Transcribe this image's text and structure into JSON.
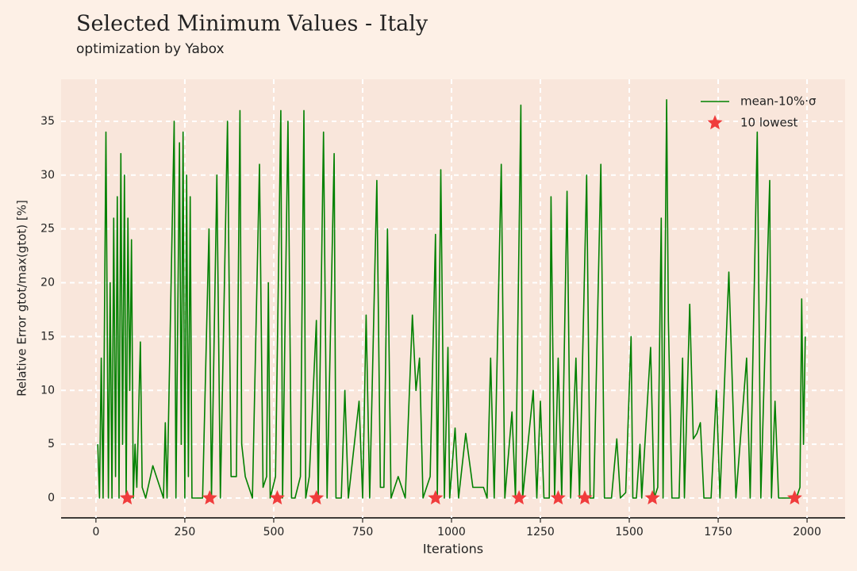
{
  "chart_data": {
    "type": "line",
    "title": "Selected Minimum Values - Italy",
    "subtitle": "optimization by Yabox",
    "xlabel": "Iterations",
    "ylabel": "Relative Error gtot/max(gtot) [%]",
    "xlim": [
      -98,
      2107
    ],
    "ylim": [
      -1.84,
      38.9
    ],
    "xticks": [
      0,
      250,
      500,
      750,
      1000,
      1250,
      1500,
      1750,
      2000
    ],
    "yticks": [
      0,
      5,
      10,
      15,
      20,
      25,
      30,
      35
    ],
    "grid": true,
    "legend": "upper right",
    "series": [
      {
        "name": "mean-10%·σ",
        "color": "#008000",
        "kind": "line",
        "x": [
          5,
          10,
          15,
          20,
          28,
          35,
          40,
          45,
          50,
          55,
          60,
          65,
          70,
          75,
          80,
          85,
          90,
          95,
          100,
          105,
          110,
          115,
          125,
          130,
          140,
          160,
          190,
          195,
          200,
          220,
          225,
          235,
          240,
          245,
          250,
          255,
          260,
          265,
          270,
          280,
          300,
          318,
          325,
          340,
          350,
          370,
          380,
          395,
          405,
          410,
          420,
          440,
          460,
          470,
          480,
          485,
          490,
          505,
          520,
          525,
          540,
          550,
          560,
          575,
          585,
          590,
          600,
          620,
          625,
          640,
          650,
          670,
          675,
          690,
          700,
          710,
          740,
          750,
          760,
          770,
          790,
          800,
          810,
          820,
          830,
          850,
          870,
          890,
          900,
          910,
          920,
          940,
          955,
          960,
          970,
          980,
          990,
          995,
          1010,
          1020,
          1040,
          1060,
          1090,
          1100,
          1110,
          1120,
          1140,
          1150,
          1170,
          1180,
          1195,
          1200,
          1230,
          1240,
          1250,
          1260,
          1275,
          1280,
          1290,
          1300,
          1310,
          1325,
          1335,
          1350,
          1360,
          1380,
          1390,
          1400,
          1420,
          1430,
          1450,
          1465,
          1475,
          1490,
          1505,
          1510,
          1520,
          1530,
          1535,
          1560,
          1570,
          1580,
          1590,
          1595,
          1605,
          1610,
          1620,
          1640,
          1650,
          1655,
          1670,
          1680,
          1690,
          1700,
          1710,
          1730,
          1745,
          1755,
          1780,
          1800,
          1830,
          1840,
          1860,
          1870,
          1895,
          1900,
          1910,
          1920,
          1960,
          1970,
          1980,
          1985,
          1990,
          1995
        ],
        "values": [
          5,
          0,
          13,
          0,
          34,
          0,
          20,
          0,
          26,
          2,
          28,
          0,
          32,
          5,
          30,
          0,
          26,
          10,
          24,
          0,
          5,
          1,
          14.5,
          1,
          0,
          3,
          0,
          7,
          0,
          35,
          0,
          33,
          5,
          34,
          0,
          30,
          2,
          28,
          0,
          0,
          0,
          25,
          0,
          30,
          0,
          35,
          2,
          2,
          36,
          5,
          2,
          0,
          31,
          1,
          2,
          20,
          0,
          2,
          36,
          0,
          35,
          0,
          0,
          2,
          36,
          0,
          2,
          16.5,
          0,
          34,
          0,
          32,
          0,
          0,
          10,
          0,
          9,
          0,
          17,
          0,
          29.5,
          1,
          1,
          25,
          0,
          2,
          0,
          17,
          10,
          13,
          0,
          2,
          24.5,
          0,
          30.5,
          0,
          14,
          0,
          6.5,
          0,
          6,
          1,
          1,
          0,
          13,
          0,
          31,
          0,
          8,
          0,
          36.5,
          0,
          10,
          0,
          9,
          0,
          0,
          28,
          0,
          13,
          0,
          28.5,
          0,
          13,
          0,
          30,
          0,
          0,
          31,
          0,
          0,
          5.5,
          0,
          0.5,
          15,
          0,
          0,
          5,
          0,
          14,
          0,
          1,
          26,
          0,
          37,
          16.5,
          0,
          0,
          13,
          0,
          18,
          5.5,
          6,
          7,
          0,
          0,
          10,
          0,
          21,
          0,
          13,
          0,
          34,
          0,
          29.5,
          0,
          9,
          0,
          0,
          0,
          1,
          18.5,
          5,
          15
        ]
      },
      {
        "name": "10 lowest",
        "color": "#f03c3c",
        "kind": "scatter",
        "x": [
          88,
          320,
          510,
          620,
          955,
          1190,
          1300,
          1375,
          1565,
          1965
        ],
        "values": [
          0,
          0,
          0,
          0,
          0,
          0,
          0,
          0,
          0,
          0
        ]
      }
    ]
  }
}
